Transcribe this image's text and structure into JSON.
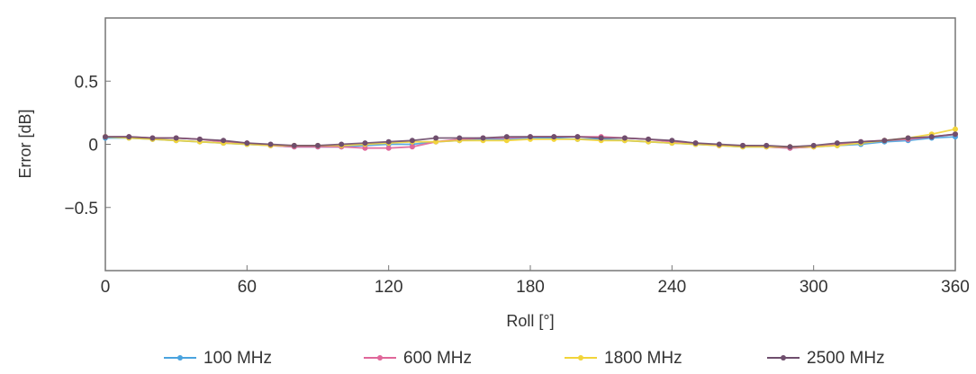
{
  "chart_data": {
    "type": "line",
    "xlabel": "Roll [°]",
    "ylabel": "Error [dB]",
    "xlim": [
      0,
      360
    ],
    "ylim": [
      -1,
      1
    ],
    "x_ticks": [
      0,
      60,
      120,
      180,
      240,
      300,
      360
    ],
    "x_tick_labels": [
      "0",
      "60",
      "120",
      "180",
      "240",
      "300",
      "360"
    ],
    "y_ticks": [
      0.5,
      0,
      -0.5
    ],
    "y_tick_labels": [
      "0.5",
      "0",
      "−0.5"
    ],
    "grid": false,
    "legend_position": "bottom",
    "x": [
      0,
      10,
      20,
      30,
      40,
      50,
      60,
      70,
      80,
      90,
      100,
      110,
      120,
      130,
      140,
      150,
      160,
      170,
      180,
      190,
      200,
      210,
      220,
      230,
      240,
      250,
      260,
      270,
      280,
      290,
      300,
      310,
      320,
      330,
      340,
      350,
      360
    ],
    "series": [
      {
        "name": "100 MHz",
        "color": "#4aa3df",
        "values": [
          0.05,
          0.05,
          0.04,
          0.03,
          0.02,
          0.01,
          0.0,
          -0.01,
          -0.02,
          -0.02,
          -0.02,
          -0.01,
          0.0,
          0.0,
          0.02,
          0.03,
          0.04,
          0.04,
          0.05,
          0.05,
          0.04,
          0.04,
          0.03,
          0.02,
          0.01,
          0.0,
          -0.01,
          -0.02,
          -0.02,
          -0.03,
          -0.02,
          -0.01,
          0.0,
          0.02,
          0.03,
          0.05,
          0.06
        ]
      },
      {
        "name": "600 MHz",
        "color": "#e0679a",
        "values": [
          0.06,
          0.06,
          0.05,
          0.05,
          0.04,
          0.02,
          0.01,
          -0.01,
          -0.02,
          -0.02,
          -0.02,
          -0.03,
          -0.03,
          -0.02,
          0.02,
          0.04,
          0.05,
          0.05,
          0.06,
          0.06,
          0.06,
          0.06,
          0.05,
          0.04,
          0.02,
          0.01,
          -0.01,
          -0.01,
          -0.02,
          -0.03,
          -0.02,
          0.0,
          0.02,
          0.03,
          0.04,
          0.06,
          0.08
        ]
      },
      {
        "name": "1800 MHz",
        "color": "#f2d43a",
        "values": [
          0.06,
          0.05,
          0.04,
          0.03,
          0.02,
          0.01,
          0.0,
          -0.01,
          -0.01,
          -0.01,
          -0.01,
          0.0,
          0.01,
          0.02,
          0.02,
          0.03,
          0.03,
          0.03,
          0.04,
          0.04,
          0.04,
          0.03,
          0.03,
          0.02,
          0.01,
          0.0,
          -0.01,
          -0.02,
          -0.02,
          -0.02,
          -0.02,
          -0.01,
          0.01,
          0.03,
          0.05,
          0.08,
          0.12
        ]
      },
      {
        "name": "2500 MHz",
        "color": "#6f4e6d",
        "values": [
          0.06,
          0.06,
          0.05,
          0.05,
          0.04,
          0.03,
          0.01,
          0.0,
          -0.01,
          -0.01,
          0.0,
          0.01,
          0.02,
          0.03,
          0.05,
          0.05,
          0.05,
          0.06,
          0.06,
          0.06,
          0.06,
          0.05,
          0.05,
          0.04,
          0.03,
          0.01,
          0.0,
          -0.01,
          -0.01,
          -0.02,
          -0.01,
          0.01,
          0.02,
          0.03,
          0.05,
          0.06,
          0.08
        ]
      }
    ]
  }
}
